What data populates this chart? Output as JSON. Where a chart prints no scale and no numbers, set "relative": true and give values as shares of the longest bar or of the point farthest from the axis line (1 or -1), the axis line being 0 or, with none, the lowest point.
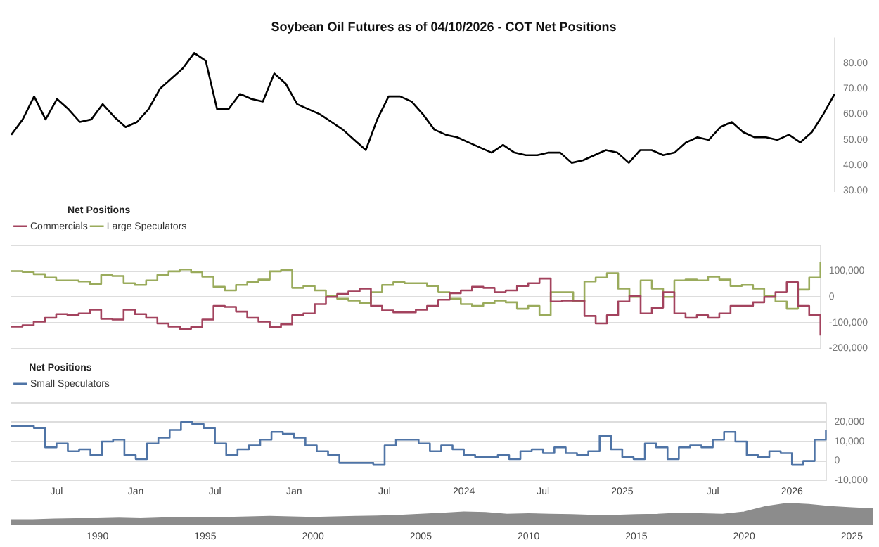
{
  "chart_data": [
    {
      "type": "line",
      "title": "Soybean Oil Futures as of 04/10/2026 - COT Net Positions",
      "categories": [
        null,
        null,
        null,
        null,
        null,
        null,
        null,
        null,
        null,
        null,
        null,
        null,
        null,
        null,
        null,
        null,
        null,
        null,
        null,
        null,
        null,
        null,
        null,
        null,
        null,
        null,
        null,
        null,
        null,
        null,
        null,
        null,
        null,
        null,
        null,
        null,
        null,
        null,
        null,
        null,
        null,
        null,
        null,
        null,
        null,
        null,
        null,
        null,
        null,
        null,
        null,
        null,
        null,
        null,
        null,
        null,
        null,
        null,
        null,
        null,
        null,
        null,
        null,
        null,
        null,
        null,
        null,
        null,
        null,
        null,
        null,
        null,
        null
      ],
      "series": [
        {
          "color": "#000000",
          "values": [
            52,
            58,
            67,
            58,
            66,
            62,
            57,
            58,
            64,
            59,
            55,
            57,
            62,
            70,
            74,
            78,
            84,
            81,
            62,
            62,
            68,
            66,
            65,
            76,
            72,
            64,
            62,
            60,
            57,
            54,
            50,
            46,
            58,
            67,
            67,
            65,
            60,
            54,
            52,
            51,
            49,
            47,
            45,
            48,
            45,
            44,
            44,
            45,
            45,
            41,
            42,
            44,
            46,
            45,
            41,
            46,
            46,
            44,
            45,
            49,
            51,
            50,
            55,
            57,
            53,
            51,
            51,
            50,
            52,
            49,
            53,
            60,
            68
          ]
        }
      ],
      "ylim": [
        30,
        90
      ],
      "yticks": [
        {
          "value": 30,
          "label": "30.00"
        },
        {
          "value": 40,
          "label": "40.00"
        },
        {
          "value": 50,
          "label": "50.00"
        },
        {
          "value": 60,
          "label": "60.00"
        },
        {
          "value": 70,
          "label": "70.00"
        },
        {
          "value": 80,
          "label": "80.00"
        }
      ],
      "tick_labels": "y",
      "marker": "none"
    },
    {
      "type": "step",
      "legend_title": "Net Positions",
      "categories": [
        null,
        null,
        null,
        null,
        null,
        null,
        null,
        null,
        null,
        null,
        null,
        null,
        null,
        null,
        null,
        null,
        null,
        null,
        null,
        null,
        null,
        null,
        null,
        null,
        null,
        null,
        null,
        null,
        null,
        null,
        null,
        null,
        null,
        null,
        null,
        null,
        null,
        null,
        null,
        null,
        null,
        null,
        null,
        null,
        null,
        null,
        null,
        null,
        null,
        null,
        null,
        null,
        null,
        null,
        null,
        null,
        null,
        null,
        null,
        null,
        null,
        null,
        null,
        null,
        null,
        null,
        null,
        null,
        null,
        null,
        null,
        null,
        null
      ],
      "series": [
        {
          "name": "Commercials",
          "color": "#a3435e",
          "values": [
            -115000,
            -110000,
            -96000,
            -81000,
            -67000,
            -71000,
            -64000,
            -50000,
            -85000,
            -88000,
            -50000,
            -67000,
            -81000,
            -103000,
            -115000,
            -124000,
            -117000,
            -88000,
            -35000,
            -39000,
            -57000,
            -81000,
            -96000,
            -117000,
            -106000,
            -71000,
            -64000,
            -28000,
            0,
            11000,
            21000,
            32000,
            -35000,
            -53000,
            -60000,
            -60000,
            -50000,
            -35000,
            -11000,
            14000,
            25000,
            39000,
            35000,
            18000,
            25000,
            42000,
            53000,
            71000,
            -18000,
            -14000,
            -14000,
            -74000,
            -103000,
            -71000,
            -18000,
            4000,
            -64000,
            -42000,
            18000,
            -64000,
            -81000,
            -71000,
            -81000,
            -64000,
            -35000,
            -35000,
            -21000,
            0,
            18000,
            57000,
            -35000,
            -71000,
            -150000
          ]
        },
        {
          "name": "Large Speculators",
          "color": "#9aab5c",
          "values": [
            100000,
            97000,
            88000,
            75000,
            64000,
            64000,
            60000,
            50000,
            85000,
            81000,
            53000,
            46000,
            64000,
            85000,
            99000,
            106000,
            96000,
            78000,
            39000,
            25000,
            46000,
            57000,
            67000,
            99000,
            103000,
            35000,
            42000,
            25000,
            4000,
            -7000,
            -14000,
            -25000,
            18000,
            46000,
            57000,
            53000,
            53000,
            42000,
            18000,
            -7000,
            -28000,
            -35000,
            -25000,
            -14000,
            -21000,
            -46000,
            -35000,
            -71000,
            18000,
            18000,
            -18000,
            60000,
            75000,
            92000,
            32000,
            0,
            64000,
            32000,
            0,
            64000,
            67000,
            64000,
            78000,
            67000,
            42000,
            46000,
            32000,
            4000,
            -18000,
            -46000,
            28000,
            75000,
            135000
          ]
        }
      ],
      "ylim": [
        -200000,
        200000
      ],
      "yticks": [
        {
          "value": -200000,
          "label": "-200,000"
        },
        {
          "value": -100000,
          "label": "-100,000"
        },
        {
          "value": 0,
          "label": "0"
        },
        {
          "value": 100000,
          "label": "100,000"
        },
        {
          "value": 200000,
          "label": null
        }
      ],
      "grid": "y",
      "legend": "top left",
      "tick_labels": "y",
      "marker": "none"
    },
    {
      "type": "step",
      "legend_title": "Net Positions",
      "categories": [
        null,
        null,
        null,
        null,
        "Jul",
        null,
        null,
        null,
        null,
        null,
        null,
        "Jan",
        null,
        null,
        null,
        null,
        null,
        null,
        "Jul",
        null,
        null,
        null,
        null,
        null,
        null,
        "Jan",
        null,
        null,
        null,
        null,
        null,
        null,
        null,
        "Jul",
        null,
        null,
        null,
        null,
        null,
        null,
        "2024",
        null,
        null,
        null,
        null,
        null,
        null,
        "Jul",
        null,
        null,
        null,
        null,
        null,
        null,
        "2025",
        null,
        null,
        null,
        null,
        null,
        null,
        null,
        "Jul",
        null,
        null,
        null,
        null,
        null,
        null,
        "2026",
        null,
        null,
        null
      ],
      "series": [
        {
          "name": "Small Speculators",
          "color": "#4f74a6",
          "values": [
            18000,
            18000,
            17000,
            7000,
            9000,
            5000,
            6000,
            3000,
            10000,
            11000,
            3000,
            1000,
            9000,
            12000,
            16000,
            20000,
            19000,
            17000,
            9000,
            3000,
            6000,
            8000,
            11000,
            15000,
            14000,
            12000,
            8000,
            5000,
            3000,
            -1000,
            -1000,
            -1000,
            -2000,
            8000,
            11000,
            11000,
            9000,
            5000,
            8000,
            6000,
            3000,
            2000,
            2000,
            3000,
            1000,
            5000,
            6000,
            4000,
            7000,
            4000,
            3000,
            5000,
            13000,
            6000,
            2000,
            1000,
            9000,
            7000,
            1000,
            7000,
            8000,
            7000,
            11000,
            15000,
            10000,
            3000,
            2000,
            5000,
            4000,
            -2000,
            0,
            11000,
            16000
          ]
        }
      ],
      "ylim": [
        -10000,
        30000
      ],
      "yticks": [
        {
          "value": -10000,
          "label": "-10,000"
        },
        {
          "value": 0,
          "label": "0"
        },
        {
          "value": 10000,
          "label": "10,000"
        },
        {
          "value": 20000,
          "label": "20,000"
        },
        {
          "value": 30000,
          "label": null
        }
      ],
      "grid": "y",
      "legend": "top left",
      "marker": "none"
    },
    {
      "type": "area",
      "relative": true,
      "categories": [
        null,
        null,
        null,
        null,
        "1990",
        null,
        null,
        null,
        null,
        "1995",
        null,
        null,
        null,
        null,
        "2000",
        null,
        null,
        null,
        null,
        "2005",
        null,
        null,
        null,
        null,
        "2010",
        null,
        null,
        null,
        null,
        "2015",
        null,
        null,
        null,
        null,
        "2020",
        null,
        null,
        null,
        null,
        "2025",
        null
      ],
      "series": [
        {
          "color": "#8c8c8c",
          "values": [
            0.25,
            0.25,
            0.28,
            0.3,
            0.3,
            0.32,
            0.3,
            0.33,
            0.35,
            0.33,
            0.35,
            0.38,
            0.4,
            0.38,
            0.35,
            0.38,
            0.4,
            0.42,
            0.45,
            0.5,
            0.55,
            0.6,
            0.58,
            0.5,
            0.52,
            0.5,
            0.48,
            0.45,
            0.45,
            0.48,
            0.5,
            0.55,
            0.52,
            0.5,
            0.6,
            0.85,
            1,
            0.95,
            0.85,
            0.8,
            0.75
          ]
        }
      ],
      "tick_labels": "x"
    }
  ]
}
